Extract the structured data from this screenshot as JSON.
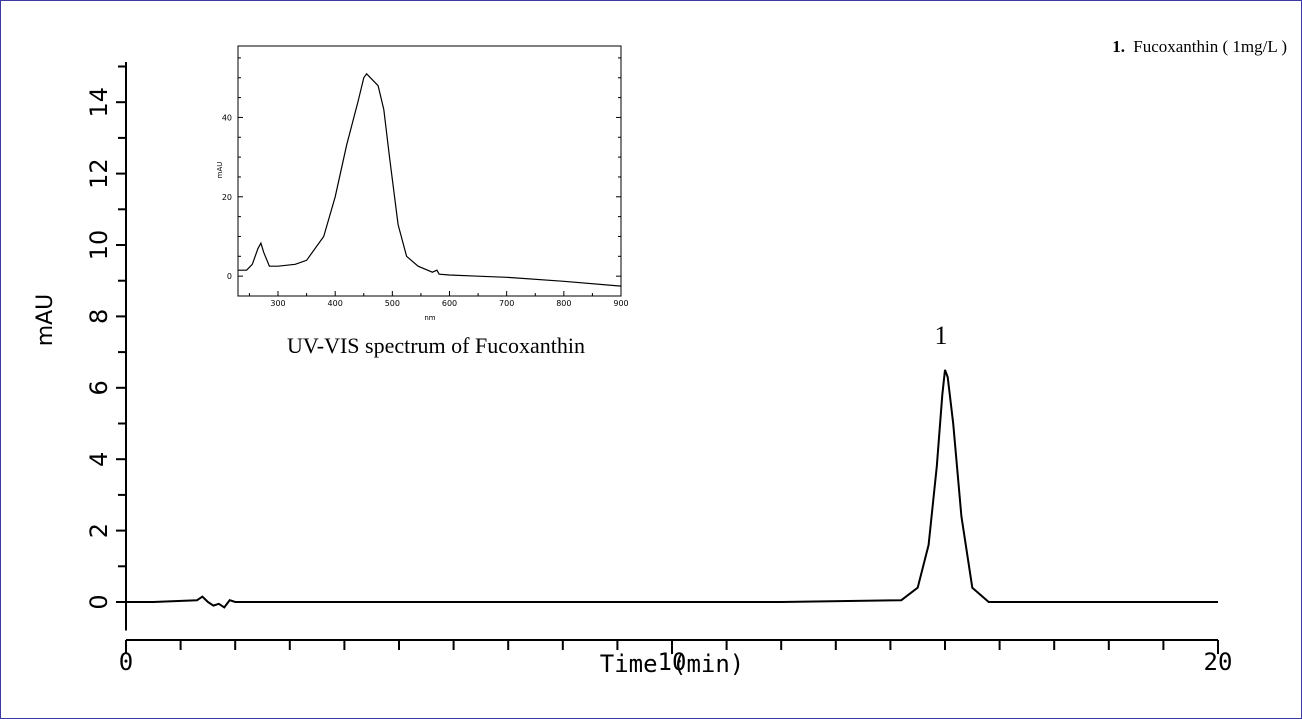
{
  "chart_data": [
    {
      "type": "line",
      "title": "",
      "xlabel": "Time (min)",
      "ylabel": "mAU",
      "xlim": [
        0,
        20
      ],
      "ylim": [
        -0.8,
        15
      ],
      "x_ticks_major": [
        "0",
        "10",
        "20"
      ],
      "y_ticks": [
        "0",
        "2",
        "4",
        "6",
        "8",
        "10",
        "12",
        "14"
      ],
      "legend_number": "1.",
      "legend_text": "Fucoxanthin ( 1mg/L )",
      "legend_placement": "top-right",
      "peak_label": "1",
      "series": [
        {
          "x": [
            0.0,
            0.5,
            1.3,
            1.4,
            1.5,
            1.6,
            1.7,
            1.8,
            1.9,
            2.0,
            2.2,
            4,
            8,
            12,
            14.2,
            14.5,
            14.7,
            14.85,
            14.95,
            15.0,
            15.05,
            15.15,
            15.3,
            15.5,
            15.8,
            17,
            20
          ],
          "y": [
            0.0,
            0.0,
            0.05,
            0.15,
            0.0,
            -0.1,
            -0.05,
            -0.15,
            0.05,
            0.0,
            0.0,
            0.0,
            0.0,
            0.0,
            0.05,
            0.4,
            1.6,
            3.8,
            5.8,
            6.5,
            6.3,
            5.0,
            2.4,
            0.4,
            0.0,
            0.0,
            0.0
          ]
        }
      ]
    },
    {
      "type": "line",
      "title": "UV-VIS spectrum of Fucoxanthin",
      "xlabel": "nm",
      "ylabel": "mAU",
      "xlim": [
        230,
        900
      ],
      "ylim": [
        -5,
        58
      ],
      "x_ticks": [
        "300",
        "400",
        "500",
        "600",
        "700",
        "800",
        "900"
      ],
      "y_ticks": [
        "0",
        "20",
        "40"
      ],
      "series": [
        {
          "x": [
            230,
            245,
            255,
            265,
            270,
            275,
            285,
            300,
            330,
            350,
            380,
            400,
            420,
            440,
            450,
            455,
            465,
            475,
            485,
            495,
            510,
            525,
            545,
            570,
            578,
            582,
            600,
            650,
            700,
            800,
            900
          ],
          "y": [
            1.5,
            1.5,
            3.0,
            7.0,
            8.3,
            6.0,
            2.5,
            2.5,
            3.0,
            4.0,
            10.0,
            20.0,
            33.0,
            44.0,
            50.0,
            51.0,
            49.5,
            48.0,
            42.0,
            30.0,
            13.0,
            5.0,
            2.5,
            1.0,
            1.5,
            0.5,
            0.3,
            0.0,
            -0.3,
            -1.3,
            -2.5
          ]
        }
      ]
    }
  ]
}
